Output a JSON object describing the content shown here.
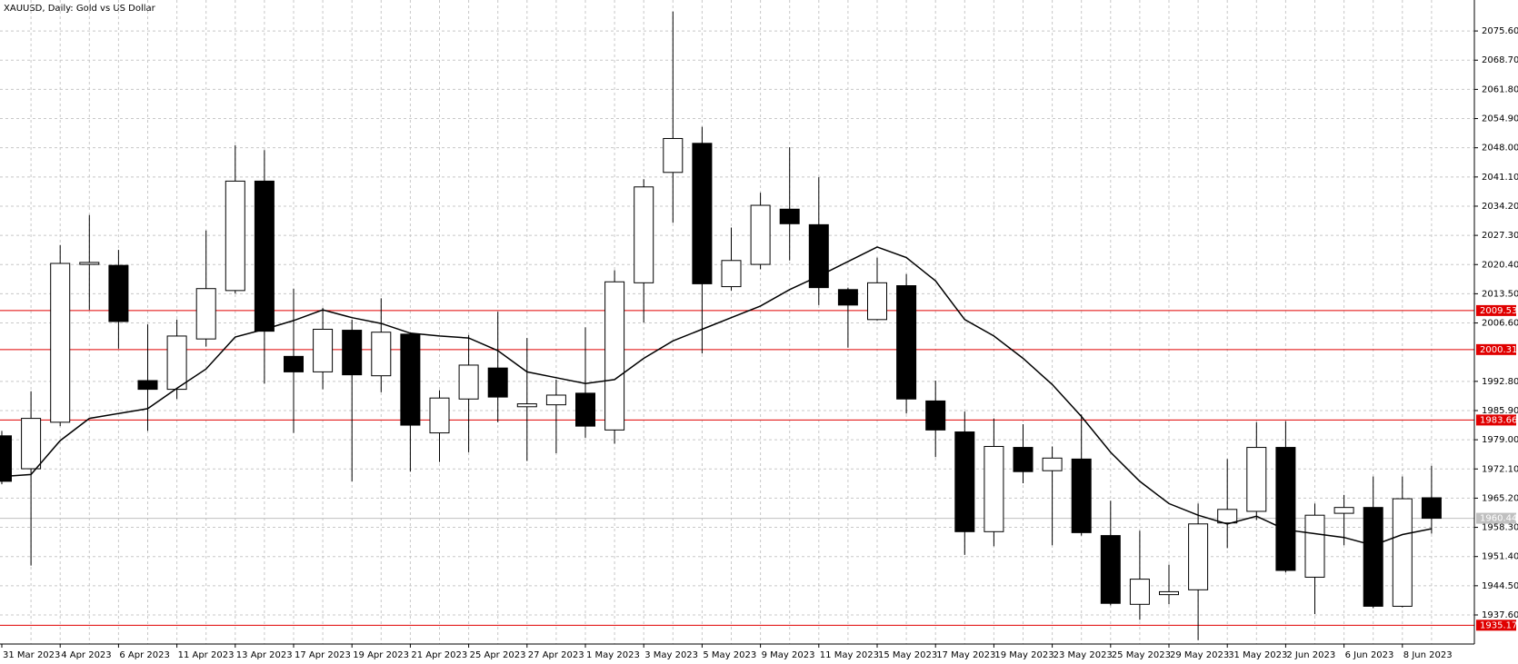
{
  "chart_data": {
    "type": "candlestick",
    "title": "XAUUSD, Daily:  Gold vs US Dollar",
    "categories": [
      "31 Mar 2023",
      null,
      "4 Apr 2023",
      null,
      "6 Apr 2023",
      null,
      "11 Apr 2023",
      null,
      "13 Apr 2023",
      null,
      "17 Apr 2023",
      null,
      "19 Apr 2023",
      null,
      "21 Apr 2023",
      null,
      "25 Apr 2023",
      null,
      "27 Apr 2023",
      null,
      "1 May 2023",
      null,
      "3 May 2023",
      null,
      "5 May 2023",
      null,
      "9 May 2023",
      null,
      "11 May 2023",
      null,
      "15 May 2023",
      null,
      "17 May 2023",
      null,
      "19 May 2023",
      null,
      "23 May 2023",
      null,
      "25 May 2023",
      null,
      "29 May 2023",
      null,
      "31 May 2023",
      null,
      "2 Jun 2023",
      null,
      "6 Jun 2023",
      null,
      "8 Jun 2023",
      null
    ],
    "open": [
      1979.93,
      1972.15,
      1983.14,
      2020.44,
      2020.21,
      1992.98,
      1990.92,
      2002.82,
      2014.26,
      2040.12,
      1998.7,
      1995.04,
      2004.88,
      1994.12,
      2003.96,
      1980.62,
      1988.63,
      1995.95,
      1986.8,
      1987.26,
      1990.0,
      1981.31,
      2016.09,
      2042.18,
      2049.05,
      2015.18,
      2020.44,
      2033.49,
      2029.82,
      2014.49,
      2007.4,
      2015.41,
      1988.17,
      1980.85,
      1957.28,
      1977.19,
      1971.69,
      1974.44,
      1956.36,
      1940.11,
      1942.4,
      1943.54,
      1959.34,
      1962.08,
      1977.19,
      1946.52,
      1961.62,
      1963.0,
      1939.65,
      1965.29
    ],
    "high": [
      1981.08,
      1990.46,
      2025.02,
      2032.11,
      2023.87,
      2006.25,
      2007.4,
      2028.45,
      2048.59,
      2047.45,
      2014.72,
      2010.14,
      2007.4,
      2012.43,
      2004.42,
      1990.69,
      2003.73,
      2009.23,
      2003.05,
      1993.21,
      2005.57,
      2019.07,
      2040.58,
      2080.17,
      2052.94,
      2029.14,
      2037.38,
      2048.13,
      2041.04,
      2014.95,
      2022.04,
      2018.15,
      1992.98,
      1985.65,
      1984.05,
      1982.68,
      1977.42,
      1984.97,
      1964.6,
      1957.5,
      1949.49,
      1963.91,
      1974.44,
      1983.14,
      1983.37,
      1963.91,
      1965.97,
      1970.32,
      1970.32,
      1972.84
    ],
    "low": [
      1968.49,
      1949.27,
      1982.22,
      2009.68,
      2000.53,
      1981.08,
      1988.63,
      2000.99,
      2013.58,
      1992.29,
      1980.62,
      1990.92,
      1969.18,
      1990.23,
      1971.47,
      1973.75,
      1976.04,
      1983.14,
      1973.98,
      1975.81,
      1979.48,
      1978.1,
      2006.71,
      2030.28,
      1999.39,
      2014.26,
      2019.3,
      2021.36,
      2010.83,
      2000.76,
      2007.17,
      1985.2,
      1974.9,
      1951.78,
      1953.84,
      1968.72,
      1954.07,
      1956.36,
      1939.88,
      1936.45,
      1940.11,
      1931.64,
      1953.39,
      1960.02,
      1947.66,
      1937.82,
      1954.07,
      1939.2,
      1939.42,
      1956.82
    ],
    "close": [
      1969.18,
      1984.05,
      2020.67,
      2020.9,
      2006.94,
      1990.92,
      2003.51,
      2014.72,
      2040.12,
      2004.65,
      1995.04,
      2005.11,
      1994.35,
      2004.42,
      1982.45,
      1988.86,
      1996.64,
      1989.09,
      1987.49,
      1989.55,
      1982.22,
      2016.32,
      2038.75,
      2050.19,
      2015.86,
      2021.36,
      2034.4,
      2030.05,
      2014.95,
      2010.83,
      2016.09,
      1988.63,
      1981.31,
      1957.28,
      1977.42,
      1971.47,
      1974.67,
      1957.05,
      1940.34,
      1946.06,
      1943.09,
      1959.11,
      1962.54,
      1977.19,
      1948.12,
      1961.17,
      1963.0,
      1939.65,
      1965.06,
      1960.44
    ],
    "moving_average": [
      1970.32,
      1970.78,
      1978.79,
      1984.05,
      1985.2,
      1986.34,
      1991.15,
      1995.72,
      2003.28,
      2005.11,
      2007.17,
      2009.68,
      2007.85,
      2006.48,
      2004.19,
      2003.51,
      2003.05,
      2000.07,
      1995.04,
      1993.66,
      1992.29,
      1993.21,
      1998.24,
      2002.36,
      2005.11,
      2007.85,
      2010.6,
      2014.49,
      2017.69,
      2021.13,
      2024.56,
      2022.04,
      2016.55,
      2007.4,
      2003.51,
      1998.24,
      1992.06,
      1984.51,
      1976.04,
      1969.18,
      1963.91,
      1961.17,
      1959.11,
      1960.94,
      1957.73,
      1956.82,
      1955.9,
      1954.07,
      1956.59,
      1957.96
    ],
    "up_color": "#ffffff",
    "down_color": "#000000",
    "line_color": "#000000",
    "ylim": [
      1930.73,
      2082.92
    ],
    "yticks": [
      {
        "value": 2075.6,
        "label": "2075.60"
      },
      {
        "value": 2068.7,
        "label": "2068.70"
      },
      {
        "value": 2061.8,
        "label": "2061.80"
      },
      {
        "value": 2054.9,
        "label": "2054.90"
      },
      {
        "value": 2048.0,
        "label": "2048.00"
      },
      {
        "value": 2041.1,
        "label": "2041.10"
      },
      {
        "value": 2034.2,
        "label": "2034.20"
      },
      {
        "value": 2027.3,
        "label": "2027.30"
      },
      {
        "value": 2020.4,
        "label": "2020.40"
      },
      {
        "value": 2013.5,
        "label": "2013.50"
      },
      {
        "value": 2006.6,
        "label": "2006.60"
      },
      {
        "value": 1992.8,
        "label": "1992.80"
      },
      {
        "value": 1985.9,
        "label": "1985.90"
      },
      {
        "value": 1979.0,
        "label": "1979.00"
      },
      {
        "value": 1972.1,
        "label": "1972.10"
      },
      {
        "value": 1965.2,
        "label": "1965.20"
      },
      {
        "value": 1958.3,
        "label": "1958.30"
      },
      {
        "value": 1951.4,
        "label": "1951.40"
      },
      {
        "value": 1944.5,
        "label": "1944.50"
      },
      {
        "value": 1937.6,
        "label": "1937.60"
      }
    ],
    "grid": true,
    "reference_lines": [
      {
        "value": 2009.53,
        "color": "#e00000"
      },
      {
        "value": 2000.31,
        "color": "#e00000"
      },
      {
        "value": 1983.66,
        "color": "#e00000"
      },
      {
        "value": 1935.17,
        "color": "#e00000"
      }
    ],
    "last_price": 1960.44,
    "last_price_color": "#c0c0c0"
  }
}
